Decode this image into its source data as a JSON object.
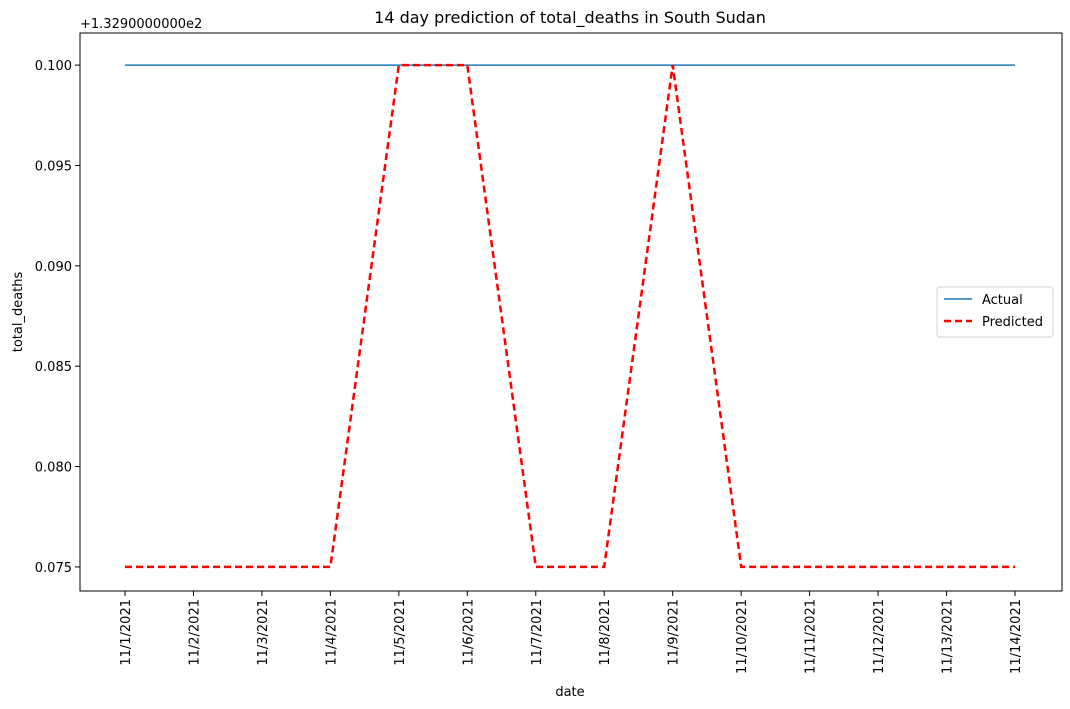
{
  "chart_data": {
    "type": "line",
    "title": "14 day prediction of total_deaths in South Sudan",
    "xlabel": "date",
    "ylabel": "total_deaths",
    "offset_label": "+1.3290000000e2",
    "categories": [
      "11/1/2021",
      "11/2/2021",
      "11/3/2021",
      "11/4/2021",
      "11/5/2021",
      "11/6/2021",
      "11/7/2021",
      "11/8/2021",
      "11/9/2021",
      "11/10/2021",
      "11/11/2021",
      "11/12/2021",
      "11/13/2021",
      "11/14/2021"
    ],
    "yticks": [
      "0.075",
      "0.080",
      "0.085",
      "0.090",
      "0.095",
      "0.100"
    ],
    "ytick_values": [
      0.075,
      0.08,
      0.085,
      0.09,
      0.095,
      0.1
    ],
    "ylim": [
      0.0738,
      0.1016
    ],
    "grid": false,
    "legend_position": "center-right",
    "series": [
      {
        "name": "Actual",
        "color": "#1f77b4",
        "style": "solid",
        "values": [
          0.1,
          0.1,
          0.1,
          0.1,
          0.1,
          0.1,
          0.1,
          0.1,
          0.1,
          0.1,
          0.1,
          0.1,
          0.1,
          0.1
        ]
      },
      {
        "name": "Predicted",
        "color": "#ff0000",
        "style": "dashed",
        "values": [
          0.075,
          0.075,
          0.075,
          0.075,
          0.1,
          0.1,
          0.075,
          0.075,
          0.1,
          0.075,
          0.075,
          0.075,
          0.075,
          0.075
        ]
      }
    ]
  }
}
